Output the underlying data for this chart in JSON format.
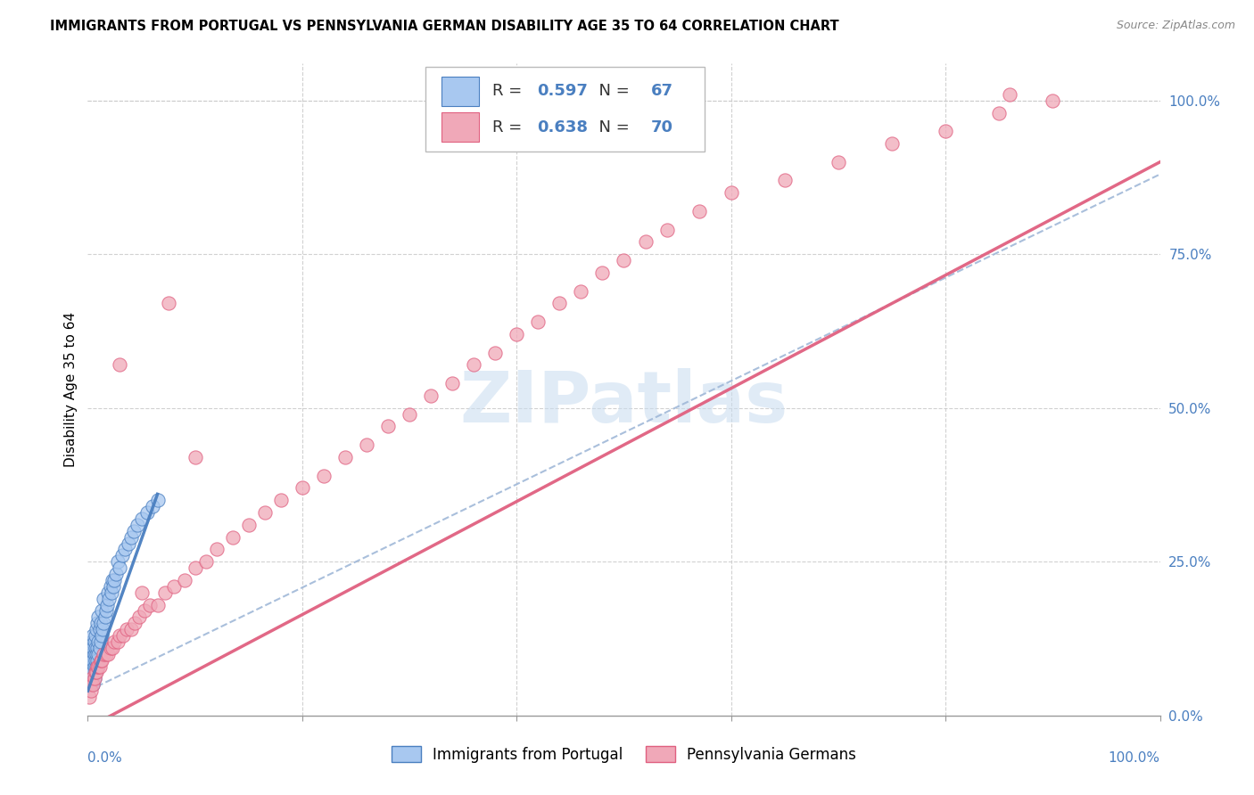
{
  "title": "IMMIGRANTS FROM PORTUGAL VS PENNSYLVANIA GERMAN DISABILITY AGE 35 TO 64 CORRELATION CHART",
  "source": "Source: ZipAtlas.com",
  "ylabel": "Disability Age 35 to 64",
  "legend_label1": "Immigrants from Portugal",
  "legend_label2": "Pennsylvania Germans",
  "R1": 0.597,
  "N1": 67,
  "R2": 0.638,
  "N2": 70,
  "color_blue": "#A8C8F0",
  "color_pink": "#F0A8B8",
  "color_blue_line": "#4A7FC0",
  "color_pink_line": "#E06080",
  "color_dashed": "#A0B8D8",
  "blue_scatter_x": [
    0.001,
    0.001,
    0.002,
    0.002,
    0.002,
    0.003,
    0.003,
    0.003,
    0.003,
    0.004,
    0.004,
    0.004,
    0.004,
    0.005,
    0.005,
    0.005,
    0.005,
    0.005,
    0.006,
    0.006,
    0.006,
    0.006,
    0.007,
    0.007,
    0.007,
    0.007,
    0.008,
    0.008,
    0.008,
    0.009,
    0.009,
    0.009,
    0.01,
    0.01,
    0.01,
    0.011,
    0.011,
    0.012,
    0.012,
    0.013,
    0.013,
    0.014,
    0.015,
    0.015,
    0.016,
    0.017,
    0.018,
    0.019,
    0.02,
    0.021,
    0.022,
    0.023,
    0.024,
    0.025,
    0.026,
    0.028,
    0.03,
    0.032,
    0.035,
    0.038,
    0.04,
    0.043,
    0.046,
    0.05,
    0.055,
    0.06,
    0.065
  ],
  "blue_scatter_y": [
    0.07,
    0.09,
    0.06,
    0.08,
    0.1,
    0.05,
    0.07,
    0.09,
    0.11,
    0.06,
    0.08,
    0.1,
    0.12,
    0.05,
    0.07,
    0.09,
    0.11,
    0.13,
    0.06,
    0.08,
    0.1,
    0.12,
    0.07,
    0.09,
    0.11,
    0.13,
    0.08,
    0.1,
    0.14,
    0.09,
    0.11,
    0.15,
    0.1,
    0.12,
    0.16,
    0.11,
    0.14,
    0.12,
    0.15,
    0.13,
    0.17,
    0.14,
    0.15,
    0.19,
    0.16,
    0.17,
    0.18,
    0.2,
    0.19,
    0.21,
    0.2,
    0.22,
    0.21,
    0.22,
    0.23,
    0.25,
    0.24,
    0.26,
    0.27,
    0.28,
    0.29,
    0.3,
    0.31,
    0.32,
    0.33,
    0.34,
    0.35
  ],
  "pink_scatter_x": [
    0.001,
    0.002,
    0.003,
    0.004,
    0.005,
    0.006,
    0.007,
    0.008,
    0.009,
    0.01,
    0.011,
    0.012,
    0.013,
    0.015,
    0.017,
    0.019,
    0.021,
    0.023,
    0.025,
    0.028,
    0.03,
    0.033,
    0.036,
    0.04,
    0.044,
    0.048,
    0.053,
    0.058,
    0.065,
    0.072,
    0.08,
    0.09,
    0.1,
    0.11,
    0.12,
    0.135,
    0.15,
    0.165,
    0.18,
    0.2,
    0.22,
    0.24,
    0.26,
    0.28,
    0.3,
    0.32,
    0.34,
    0.36,
    0.38,
    0.4,
    0.42,
    0.44,
    0.46,
    0.48,
    0.5,
    0.52,
    0.54,
    0.57,
    0.6,
    0.65,
    0.7,
    0.75,
    0.8,
    0.85,
    0.9,
    0.03,
    0.05,
    0.075,
    0.1,
    0.86
  ],
  "pink_scatter_y": [
    0.03,
    0.05,
    0.04,
    0.06,
    0.05,
    0.06,
    0.07,
    0.07,
    0.08,
    0.08,
    0.08,
    0.09,
    0.09,
    0.1,
    0.1,
    0.1,
    0.11,
    0.11,
    0.12,
    0.12,
    0.13,
    0.13,
    0.14,
    0.14,
    0.15,
    0.16,
    0.17,
    0.18,
    0.18,
    0.2,
    0.21,
    0.22,
    0.24,
    0.25,
    0.27,
    0.29,
    0.31,
    0.33,
    0.35,
    0.37,
    0.39,
    0.42,
    0.44,
    0.47,
    0.49,
    0.52,
    0.54,
    0.57,
    0.59,
    0.62,
    0.64,
    0.67,
    0.69,
    0.72,
    0.74,
    0.77,
    0.79,
    0.82,
    0.85,
    0.87,
    0.9,
    0.93,
    0.95,
    0.98,
    1.0,
    0.57,
    0.2,
    0.67,
    0.42,
    1.01
  ],
  "blue_line_x": [
    0.0,
    0.065
  ],
  "blue_line_y": [
    0.04,
    0.36
  ],
  "dashed_line_x": [
    0.0,
    1.0
  ],
  "dashed_line_y": [
    0.04,
    0.88
  ],
  "pink_line_x": [
    0.0,
    1.0
  ],
  "pink_line_y": [
    -0.02,
    0.9
  ],
  "xmin": 0.0,
  "xmax": 1.0,
  "ymin": 0.0,
  "ymax": 1.06
}
